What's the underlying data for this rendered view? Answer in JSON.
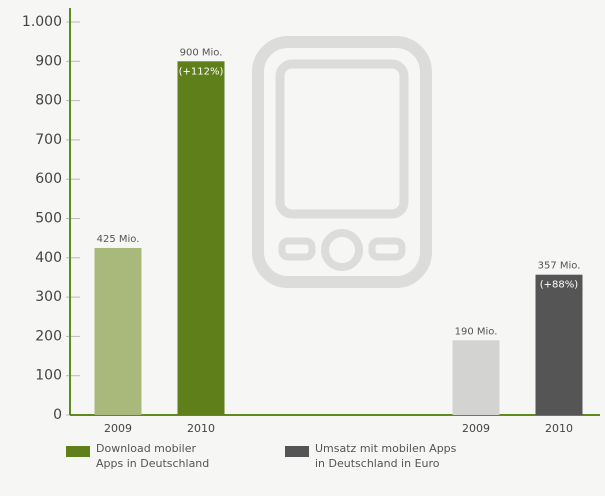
{
  "chart_data": {
    "type": "bar",
    "categories": [
      "2009",
      "2010",
      "2009",
      "2010"
    ],
    "series": [
      {
        "name": "Download mobiler\nApps in Deutschland",
        "color": "#5f7f1a",
        "colors": [
          "#a9b97c",
          "#5f7f1a",
          null,
          null
        ],
        "values": [
          425,
          900,
          null,
          null
        ],
        "value_labels": [
          "425 Mio.",
          "900 Mio.",
          null,
          null
        ],
        "annotations": [
          null,
          "(+112%)",
          null,
          null
        ]
      },
      {
        "name": "Umsatz mit mobilen Apps\nin Deutschland in Euro",
        "color": "#555555",
        "colors": [
          null,
          null,
          "#d3d3d1",
          "#555555"
        ],
        "values": [
          null,
          null,
          190,
          357
        ],
        "value_labels": [
          null,
          null,
          "190 Mio.",
          "357 Mio."
        ],
        "annotations": [
          null,
          null,
          null,
          "(+88%)"
        ]
      }
    ],
    "ylim": [
      0,
      1000
    ],
    "yticks": [
      0,
      100,
      200,
      300,
      400,
      500,
      600,
      700,
      800,
      900,
      {
        "value": 1000,
        "label": "1.000"
      }
    ],
    "axis_color": "#5f8a1e"
  }
}
